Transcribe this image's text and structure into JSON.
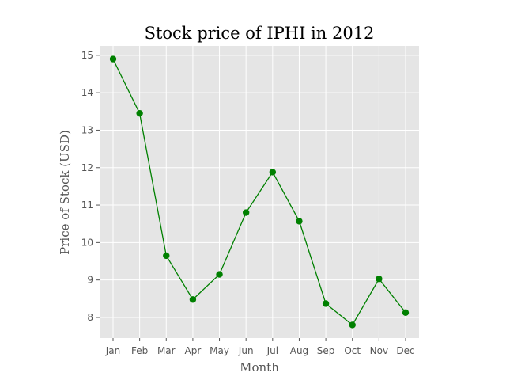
{
  "chart_data": {
    "type": "line",
    "title": "Stock price of IPHI in 2012",
    "xlabel": "Month",
    "ylabel": "Price of Stock (USD)",
    "categories": [
      "Jan",
      "Feb",
      "Mar",
      "Apr",
      "May",
      "Jun",
      "Jul",
      "Aug",
      "Sep",
      "Oct",
      "Nov",
      "Dec"
    ],
    "series": [
      {
        "values": [
          14.9,
          13.45,
          9.65,
          8.48,
          9.15,
          10.8,
          11.88,
          10.57,
          8.37,
          7.8,
          9.03,
          8.13
        ]
      }
    ],
    "ylim": [
      7.45,
      15.25
    ],
    "yticks": [
      8,
      9,
      10,
      11,
      12,
      13,
      14,
      15
    ],
    "grid": true,
    "line_color": "#008000",
    "marker_color": "#008000",
    "plot_background": "#e5e5e5",
    "grid_color": "#ffffff"
  }
}
